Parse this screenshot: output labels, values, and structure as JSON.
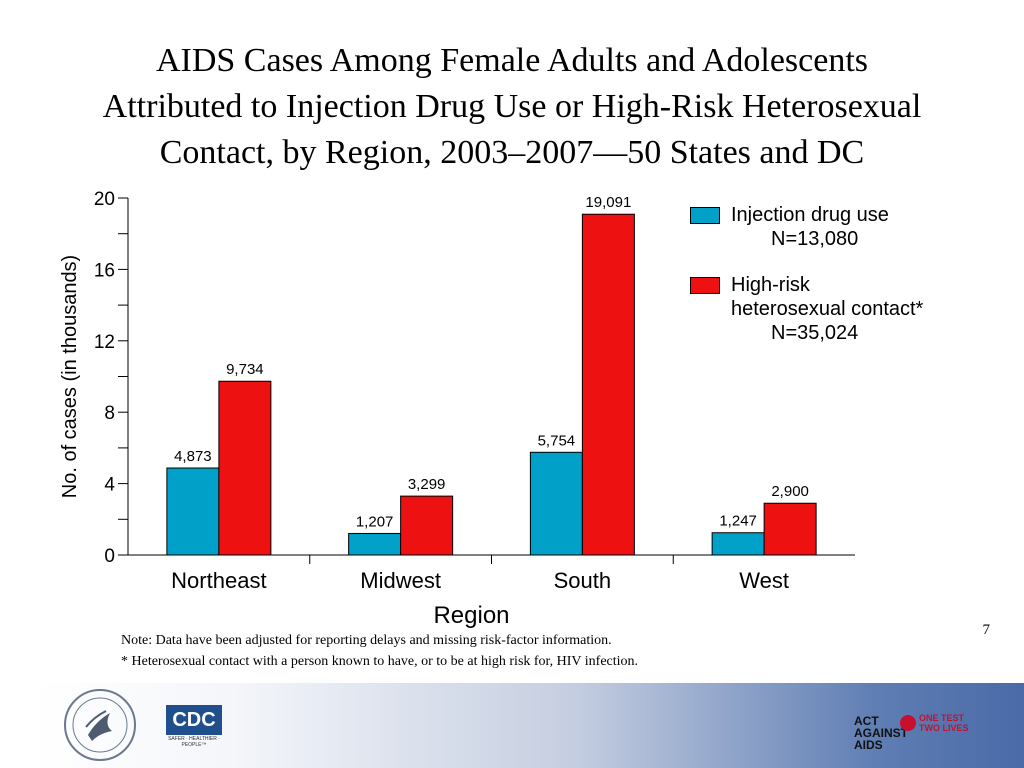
{
  "slide": {
    "title_lines": [
      "AIDS Cases Among Female Adults and Adolescents",
      "Attributed to Injection Drug Use or High-Risk Heterosexual",
      "Contact, by Region, 2003–2007—50 States and DC"
    ],
    "page_number": "7",
    "notes": [
      "Note:  Data have been adjusted for reporting delays and missing risk-factor information.",
      "* Heterosexual contact with a person known to have, or to be at high risk for, HIV infection."
    ],
    "logos": {
      "cdc": "CDC",
      "cdc_tagline": "SAFER · HEALTHIER · PEOPLE™",
      "act": "ACT AGAINST AIDS",
      "onetest": "ONE TEST TWO LIVES"
    }
  },
  "legend": {
    "item1_line1": "Injection drug use",
    "item1_line2": "N=13,080",
    "item2_line1": "High-risk",
    "item2_line2": "heterosexual contact*",
    "item2_line3": "N=35,024"
  },
  "colors": {
    "injection": "#00A0C8",
    "heterosexual": "#EE1111"
  },
  "chart_data": {
    "type": "bar",
    "xlabel": "Region",
    "ylabel": "No. of cases (in thousands)",
    "ylim": [
      0,
      20
    ],
    "yticks": [
      0,
      4,
      8,
      12,
      16,
      20
    ],
    "categories": [
      "Northeast",
      "Midwest",
      "South",
      "West"
    ],
    "series": [
      {
        "name": "Injection drug use",
        "values": [
          4.873,
          1.207,
          5.754,
          1.247
        ],
        "labels": [
          "4,873",
          "1,207",
          "5,754",
          "1,247"
        ]
      },
      {
        "name": "High-risk heterosexual contact*",
        "values": [
          9.734,
          3.299,
          19.091,
          2.9
        ],
        "labels": [
          "9,734",
          "3,299",
          "19,091",
          "2,900"
        ]
      }
    ],
    "legend_position": "top-right",
    "grid": false
  }
}
